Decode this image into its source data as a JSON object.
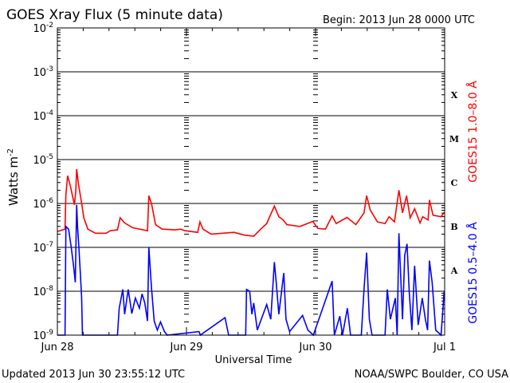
{
  "header": {
    "title": "GOES Xray Flux (5 minute data)",
    "begin": "Begin:  2013 Jun 28 0000 UTC"
  },
  "footer": {
    "updated": "Updated 2013 Jun 30 23:55:12 UTC",
    "credit": "NOAA/SWPC Boulder, CO USA"
  },
  "chart_data": {
    "type": "line",
    "title": "GOES Xray Flux (5 minute data)",
    "xlabel": "Universal Time",
    "ylabel": {
      "text": "Watts m",
      "exp": "-2"
    },
    "yscale": "log",
    "ylim": [
      1e-09,
      0.01
    ],
    "xlim": [
      "2013-06-28 00:00",
      "2013-07-01 00:00"
    ],
    "grid": "horizontal lines at each decade from 1e-8 to 1e-3",
    "x_ticks": [
      {
        "label": "Jun 28",
        "date": "2013-06-28 00:00"
      },
      {
        "label": "Jun 29",
        "date": "2013-06-29 00:00"
      },
      {
        "label": "Jun 30",
        "date": "2013-06-30 00:00"
      },
      {
        "label": "Jul 1",
        "date": "2013-07-01 00:00"
      }
    ],
    "y_ticks": [
      {
        "base": "10",
        "exp": "-2",
        "value": 0.01
      },
      {
        "base": "10",
        "exp": "-3",
        "value": 0.001
      },
      {
        "base": "10",
        "exp": "-4",
        "value": 0.0001
      },
      {
        "base": "10",
        "exp": "-5",
        "value": 1e-05
      },
      {
        "base": "10",
        "exp": "-6",
        "value": 1e-06
      },
      {
        "base": "10",
        "exp": "-7",
        "value": 1e-07
      },
      {
        "base": "10",
        "exp": "-8",
        "value": 1e-08
      },
      {
        "base": "10",
        "exp": "-9",
        "value": 1e-09
      }
    ],
    "flare_classes": [
      {
        "label": "X",
        "value": 0.0003
      },
      {
        "label": "M",
        "value": 3e-05
      },
      {
        "label": "C",
        "value": 3e-06
      },
      {
        "label": "B",
        "value": 3e-07
      },
      {
        "label": "A",
        "value": 3e-08
      }
    ],
    "series": [
      {
        "name": "GOES15 1.0–8.0 Å",
        "color": "#ff0000",
        "points": [
          [
            "2013-06-28 00:00",
            2.3e-07
          ],
          [
            "2013-06-28 01:25",
            2.6e-07
          ],
          [
            "2013-06-28 01:35",
            1.6e-06
          ],
          [
            "2013-06-28 01:55",
            4.3e-06
          ],
          [
            "2013-06-28 02:25",
            2.5e-06
          ],
          [
            "2013-06-28 03:10",
            9.3e-07
          ],
          [
            "2013-06-28 03:25",
            1.9e-06
          ],
          [
            "2013-06-28 03:35",
            6.1e-06
          ],
          [
            "2013-06-28 03:55",
            2.8e-06
          ],
          [
            "2013-06-28 04:25",
            1.2e-06
          ],
          [
            "2013-06-28 04:55",
            4.7e-07
          ],
          [
            "2013-06-28 05:40",
            2.6e-07
          ],
          [
            "2013-06-28 07:05",
            2.1e-07
          ],
          [
            "2013-06-28 09:05",
            2.1e-07
          ],
          [
            "2013-06-28 09:50",
            2.4e-07
          ],
          [
            "2013-06-28 11:10",
            2.5e-07
          ],
          [
            "2013-06-28 11:40",
            4.7e-07
          ],
          [
            "2013-06-28 12:30",
            3.6e-07
          ],
          [
            "2013-06-28 14:00",
            2.8e-07
          ],
          [
            "2013-06-28 16:45",
            2.4e-07
          ],
          [
            "2013-06-28 17:00",
            1.5e-06
          ],
          [
            "2013-06-28 17:30",
            1e-06
          ],
          [
            "2013-06-28 18:15",
            3.3e-07
          ],
          [
            "2013-06-28 19:30",
            2.6e-07
          ],
          [
            "2013-06-28 21:55",
            2.5e-07
          ],
          [
            "2013-06-28 22:55",
            2.6e-07
          ],
          [
            "2013-06-28 23:40",
            2.4e-07
          ],
          [
            "2013-06-29 02:05",
            2.2e-07
          ],
          [
            "2013-06-29 02:30",
            3.8e-07
          ],
          [
            "2013-06-29 03:05",
            2.6e-07
          ],
          [
            "2013-06-29 04:35",
            2e-07
          ],
          [
            "2013-06-29 08:50",
            2.2e-07
          ],
          [
            "2013-06-29 10:50",
            1.9e-07
          ],
          [
            "2013-06-29 12:30",
            1.8e-07
          ],
          [
            "2013-06-29 13:40",
            2.5e-07
          ],
          [
            "2013-06-29 14:55",
            3.5e-07
          ],
          [
            "2013-06-29 16:20",
            8.7e-07
          ],
          [
            "2013-06-29 17:10",
            5e-07
          ],
          [
            "2013-06-29 17:55",
            4.3e-07
          ],
          [
            "2013-06-29 18:40",
            3.3e-07
          ],
          [
            "2013-06-29 21:05",
            3e-07
          ],
          [
            "2013-06-29 23:30",
            3.9e-07
          ],
          [
            "2013-06-30 00:25",
            2.7e-07
          ],
          [
            "2013-06-30 01:50",
            2.6e-07
          ],
          [
            "2013-06-30 03:05",
            5.2e-07
          ],
          [
            "2013-06-30 03:50",
            3.5e-07
          ],
          [
            "2013-06-30 05:50",
            4.8e-07
          ],
          [
            "2013-06-30 07:30",
            3.3e-07
          ],
          [
            "2013-06-30 09:00",
            6.1e-07
          ],
          [
            "2013-06-30 09:30",
            1.5e-06
          ],
          [
            "2013-06-30 10:10",
            7.1e-07
          ],
          [
            "2013-06-30 11:30",
            3.8e-07
          ],
          [
            "2013-06-30 12:55",
            3.5e-07
          ],
          [
            "2013-06-30 13:40",
            5e-07
          ],
          [
            "2013-06-30 14:40",
            3.8e-07
          ],
          [
            "2013-06-30 15:30",
            2e-06
          ],
          [
            "2013-06-30 16:10",
            6.1e-07
          ],
          [
            "2013-06-30 16:55",
            1.5e-06
          ],
          [
            "2013-06-30 17:35",
            4.7e-07
          ],
          [
            "2013-06-30 18:25",
            7.6e-07
          ],
          [
            "2013-06-30 19:25",
            3.6e-07
          ],
          [
            "2013-06-30 19:55",
            5e-07
          ],
          [
            "2013-06-30 20:55",
            4.2e-07
          ],
          [
            "2013-06-30 21:10",
            1.2e-06
          ],
          [
            "2013-06-30 21:50",
            5.4e-07
          ],
          [
            "2013-06-30 23:20",
            5e-07
          ],
          [
            "2013-06-30 23:55",
            6.3e-07
          ]
        ]
      },
      {
        "name": "GOES15 0.5–4.0 Å",
        "color": "#0000ff",
        "points": [
          [
            "2013-06-28 00:00",
            1e-09
          ],
          [
            "2013-06-28 01:25",
            1e-09
          ],
          [
            "2013-06-28 01:35",
            3e-07
          ],
          [
            "2013-06-28 02:05",
            2.6e-07
          ],
          [
            "2013-06-28 02:35",
            1e-07
          ],
          [
            "2013-06-28 03:00",
            3.8e-08
          ],
          [
            "2013-06-28 03:20",
            1.6e-08
          ],
          [
            "2013-06-28 03:35",
            9.3e-07
          ],
          [
            "2013-06-28 03:45",
            3e-07
          ],
          [
            "2013-06-28 04:00",
            1e-07
          ],
          [
            "2013-06-28 04:15",
            2.8e-08
          ],
          [
            "2013-06-28 04:30",
            7.6e-09
          ],
          [
            "2013-06-28 04:40",
            1e-09
          ],
          [
            "2013-06-28 11:10",
            1e-09
          ],
          [
            "2013-06-28 11:30",
            4.1e-09
          ],
          [
            "2013-06-28 12:10",
            1.1e-08
          ],
          [
            "2013-06-28 12:30",
            3e-09
          ],
          [
            "2013-06-28 13:10",
            1.1e-08
          ],
          [
            "2013-06-28 13:50",
            3.1e-09
          ],
          [
            "2013-06-28 14:30",
            7e-09
          ],
          [
            "2013-06-28 15:15",
            4.1e-09
          ],
          [
            "2013-06-28 15:45",
            8.7e-09
          ],
          [
            "2013-06-28 16:15",
            5.4e-09
          ],
          [
            "2013-06-28 16:45",
            2.1e-09
          ],
          [
            "2013-06-28 17:00",
            1e-07
          ],
          [
            "2013-06-28 17:30",
            1.2e-08
          ],
          [
            "2013-06-28 18:00",
            2.1e-09
          ],
          [
            "2013-06-28 18:35",
            1.3e-09
          ],
          [
            "2013-06-28 19:10",
            2e-09
          ],
          [
            "2013-06-28 19:55",
            1.2e-09
          ],
          [
            "2013-06-28 20:25",
            1e-09
          ],
          [
            "2013-06-29 02:20",
            1.2e-09
          ],
          [
            "2013-06-29 02:35",
            1e-09
          ],
          [
            "2013-06-29 07:10",
            2.5e-09
          ],
          [
            "2013-06-29 07:50",
            1e-09
          ],
          [
            "2013-06-29 11:00",
            1e-09
          ],
          [
            "2013-06-29 11:10",
            1.1e-08
          ],
          [
            "2013-06-29 11:45",
            1e-08
          ],
          [
            "2013-06-29 12:10",
            3e-09
          ],
          [
            "2013-06-29 12:30",
            5.4e-09
          ],
          [
            "2013-06-29 13:10",
            1.3e-09
          ],
          [
            "2013-06-29 14:55",
            5e-09
          ],
          [
            "2013-06-29 15:40",
            2.3e-09
          ],
          [
            "2013-06-29 16:20",
            4.6e-08
          ],
          [
            "2013-06-29 16:40",
            1.7e-08
          ],
          [
            "2013-06-29 17:10",
            3e-09
          ],
          [
            "2013-06-29 18:05",
            2.6e-08
          ],
          [
            "2013-06-29 18:30",
            2.3e-09
          ],
          [
            "2013-06-29 19:10",
            1.2e-09
          ],
          [
            "2013-06-29 21:35",
            2.8e-09
          ],
          [
            "2013-06-29 22:35",
            1.3e-09
          ],
          [
            "2013-06-29 23:35",
            1e-09
          ],
          [
            "2013-06-30 03:05",
            1.7e-08
          ],
          [
            "2013-06-30 03:30",
            1e-09
          ],
          [
            "2013-06-30 04:30",
            2.7e-09
          ],
          [
            "2013-06-30 05:00",
            1e-09
          ],
          [
            "2013-06-30 05:55",
            4.1e-09
          ],
          [
            "2013-06-30 06:30",
            1e-09
          ],
          [
            "2013-06-30 08:30",
            1e-09
          ],
          [
            "2013-06-30 09:00",
            1.1e-08
          ],
          [
            "2013-06-30 09:30",
            7.6e-08
          ],
          [
            "2013-06-30 10:00",
            2.3e-09
          ],
          [
            "2013-06-30 10:30",
            1e-09
          ],
          [
            "2013-06-30 12:55",
            1e-09
          ],
          [
            "2013-06-30 13:20",
            1.1e-08
          ],
          [
            "2013-06-30 13:55",
            2.3e-09
          ],
          [
            "2013-06-30 14:50",
            7e-09
          ],
          [
            "2013-06-30 15:10",
            1e-09
          ],
          [
            "2013-06-30 15:30",
            2.1e-07
          ],
          [
            "2013-06-30 16:10",
            2.3e-09
          ],
          [
            "2013-06-30 16:35",
            6.6e-08
          ],
          [
            "2013-06-30 17:00",
            1.2e-07
          ],
          [
            "2013-06-30 17:25",
            9.3e-09
          ],
          [
            "2013-06-30 17:55",
            1.3e-09
          ],
          [
            "2013-06-30 18:25",
            3.8e-08
          ],
          [
            "2013-06-30 19:05",
            1.7e-09
          ],
          [
            "2013-06-30 19:50",
            7e-09
          ],
          [
            "2013-06-30 20:25",
            2.3e-09
          ],
          [
            "2013-06-30 20:50",
            1.3e-09
          ],
          [
            "2013-06-30 21:10",
            5e-08
          ],
          [
            "2013-06-30 21:40",
            1.6e-08
          ],
          [
            "2013-06-30 22:20",
            1.3e-09
          ],
          [
            "2013-06-30 23:20",
            1e-09
          ],
          [
            "2013-06-30 23:55",
            1e-08
          ]
        ]
      }
    ]
  }
}
